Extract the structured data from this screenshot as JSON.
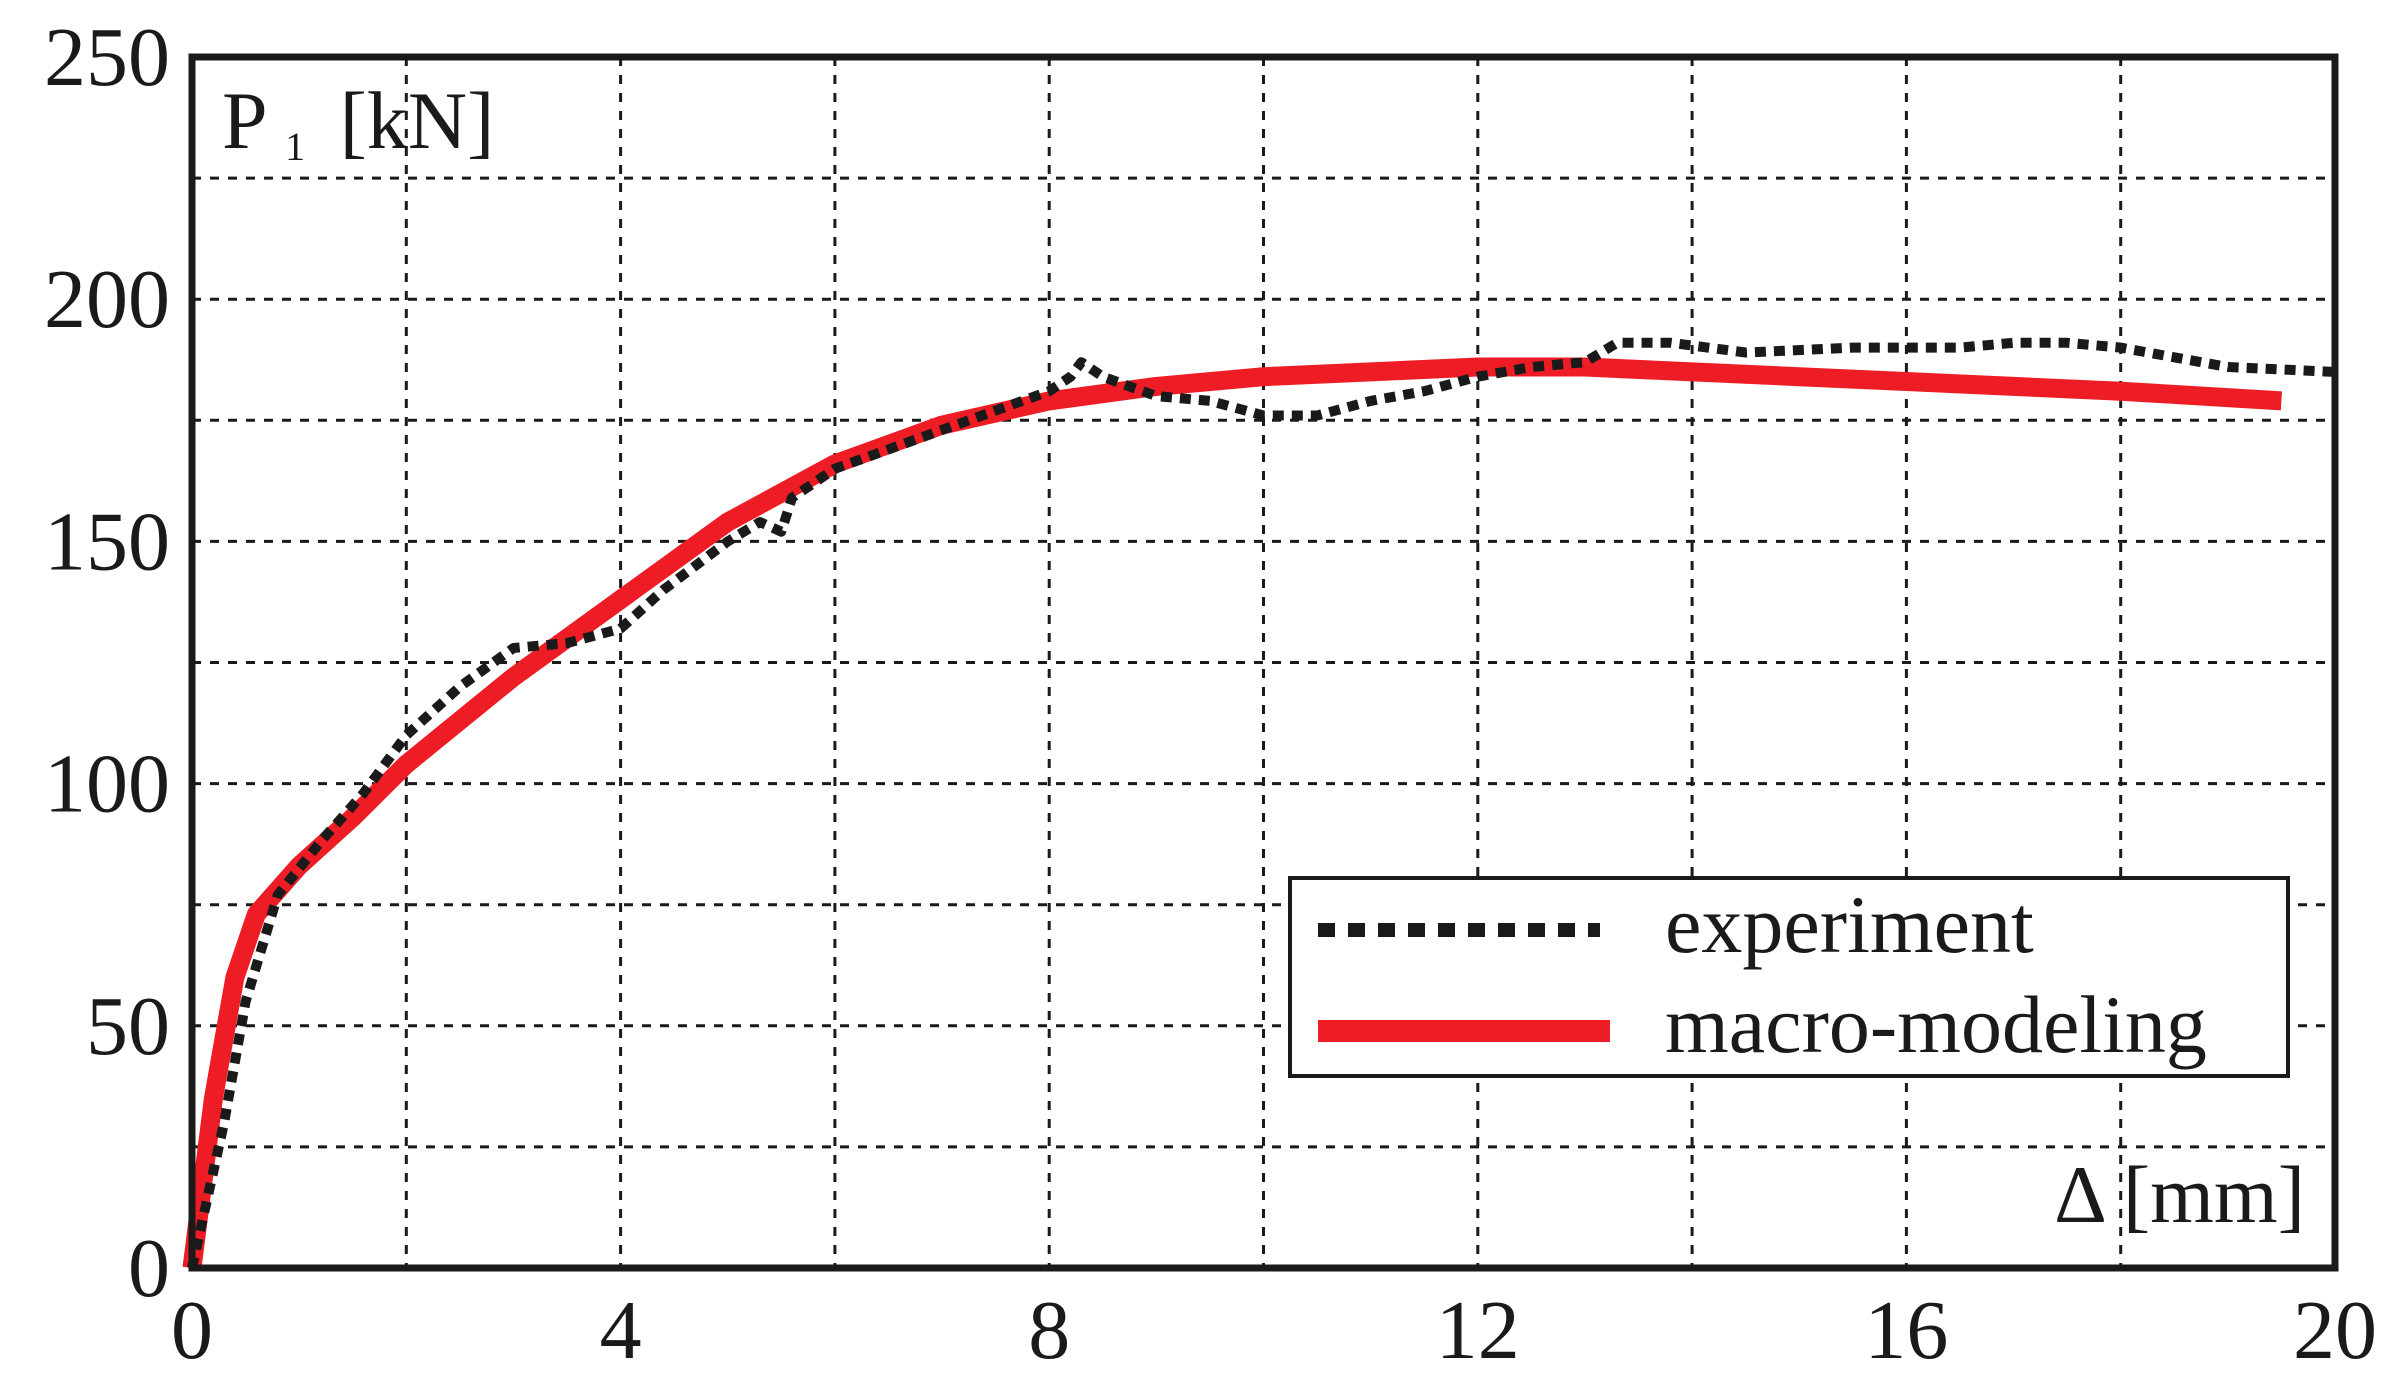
{
  "chart_data": {
    "type": "line",
    "title": "",
    "ylabel_main": "P",
    "ylabel_sub": "1",
    "ylabel_unit": "[kN]",
    "xlabel": "Δ [mm]",
    "xlim": [
      0,
      20
    ],
    "ylim": [
      0,
      250
    ],
    "x_ticks": [
      0,
      4,
      8,
      12,
      16,
      20
    ],
    "y_ticks": [
      0,
      50,
      100,
      150,
      200,
      250
    ],
    "x_grid": [
      2,
      4,
      6,
      8,
      10,
      12,
      14,
      16,
      18
    ],
    "y_grid": [
      25,
      50,
      75,
      100,
      125,
      150,
      175,
      200,
      225
    ],
    "grid": true,
    "legend_position": "lower-right",
    "series": [
      {
        "name": "experiment",
        "color": "#1a1a1a",
        "style": "dotted",
        "points": [
          [
            0,
            0
          ],
          [
            0.3,
            30
          ],
          [
            0.5,
            55
          ],
          [
            0.8,
            77
          ],
          [
            1.2,
            88
          ],
          [
            1.6,
            98
          ],
          [
            2.0,
            110
          ],
          [
            2.5,
            120
          ],
          [
            3.0,
            128
          ],
          [
            3.5,
            129
          ],
          [
            4.0,
            132
          ],
          [
            4.4,
            140
          ],
          [
            5.0,
            150
          ],
          [
            5.3,
            154
          ],
          [
            5.5,
            152
          ],
          [
            5.6,
            159
          ],
          [
            6.0,
            165
          ],
          [
            6.5,
            169
          ],
          [
            7.0,
            173
          ],
          [
            7.5,
            177
          ],
          [
            8.0,
            181
          ],
          [
            8.2,
            184
          ],
          [
            8.3,
            187
          ],
          [
            8.5,
            184
          ],
          [
            9.0,
            180
          ],
          [
            9.5,
            179
          ],
          [
            10.0,
            176
          ],
          [
            10.5,
            176
          ],
          [
            11.0,
            179
          ],
          [
            11.5,
            181
          ],
          [
            12.0,
            184
          ],
          [
            12.5,
            186
          ],
          [
            13.0,
            187
          ],
          [
            13.3,
            191
          ],
          [
            13.8,
            191
          ],
          [
            14.5,
            189
          ],
          [
            15.5,
            190
          ],
          [
            16.5,
            190
          ],
          [
            17.0,
            191
          ],
          [
            17.5,
            191
          ],
          [
            18.0,
            190
          ],
          [
            19.0,
            186
          ],
          [
            20.0,
            185
          ]
        ]
      },
      {
        "name": "macro-modeling",
        "color": "#ee1c25",
        "style": "solid",
        "points": [
          [
            0,
            0
          ],
          [
            0.2,
            35
          ],
          [
            0.4,
            60
          ],
          [
            0.6,
            73
          ],
          [
            1.0,
            83
          ],
          [
            1.5,
            93
          ],
          [
            2.0,
            104
          ],
          [
            3.0,
            122
          ],
          [
            4.0,
            138
          ],
          [
            5.0,
            154
          ],
          [
            6.0,
            166
          ],
          [
            7.0,
            174
          ],
          [
            8.0,
            179
          ],
          [
            9.0,
            182
          ],
          [
            10.0,
            184
          ],
          [
            11.0,
            185
          ],
          [
            12.0,
            186
          ],
          [
            13.0,
            186
          ],
          [
            14.0,
            185
          ],
          [
            15.0,
            184
          ],
          [
            16.0,
            183
          ],
          [
            17.0,
            182
          ],
          [
            18.0,
            181
          ],
          [
            19.5,
            179
          ]
        ]
      }
    ]
  }
}
